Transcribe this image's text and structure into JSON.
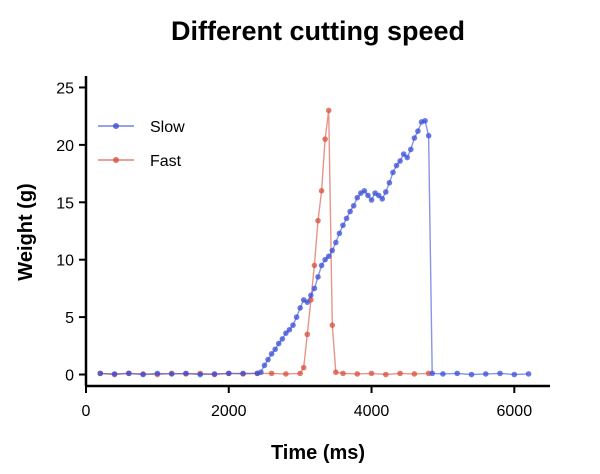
{
  "chart_data": {
    "type": "line",
    "title": "Different cutting speed",
    "xlabel": "Time (ms)",
    "ylabel": "Weight (g)",
    "xlim": [
      0,
      6500
    ],
    "ylim": [
      -1,
      26
    ],
    "xticks": [
      0,
      2000,
      4000,
      6000
    ],
    "xtick_labels": [
      "0",
      "2000",
      "4000",
      "6000"
    ],
    "yticks": [
      0,
      5,
      10,
      15,
      20,
      25
    ],
    "ytick_labels": [
      "0",
      "5",
      "10",
      "15",
      "20",
      "25"
    ],
    "grid": false,
    "legend_position": "top-left",
    "series": [
      {
        "name": "Slow",
        "color": "#3a4fd8",
        "x": [
          200,
          400,
          600,
          800,
          1000,
          1200,
          1400,
          1600,
          1800,
          2000,
          2200,
          2400,
          2450,
          2500,
          2550,
          2600,
          2650,
          2700,
          2750,
          2800,
          2850,
          2900,
          2950,
          3000,
          3050,
          3100,
          3150,
          3200,
          3250,
          3300,
          3350,
          3400,
          3450,
          3500,
          3550,
          3600,
          3650,
          3700,
          3750,
          3800,
          3850,
          3900,
          3950,
          4000,
          4050,
          4100,
          4150,
          4200,
          4250,
          4300,
          4350,
          4400,
          4450,
          4500,
          4550,
          4600,
          4650,
          4700,
          4750,
          4800,
          4850,
          5000,
          5200,
          5400,
          5600,
          5800,
          6000,
          6200
        ],
        "values": [
          0.1,
          0.05,
          0.1,
          0.0,
          0.1,
          0.05,
          0.1,
          0.0,
          0.05,
          0.1,
          0.1,
          0.1,
          0.2,
          0.8,
          1.3,
          1.8,
          2.2,
          2.7,
          3.1,
          3.6,
          3.9,
          4.3,
          5.0,
          5.8,
          6.5,
          6.3,
          6.9,
          7.5,
          8.5,
          9.5,
          10.0,
          10.3,
          10.8,
          11.5,
          12.3,
          13.0,
          13.6,
          14.2,
          14.7,
          15.4,
          15.8,
          16.0,
          15.6,
          15.2,
          15.8,
          15.6,
          15.3,
          15.9,
          16.7,
          17.6,
          18.2,
          18.6,
          19.2,
          18.9,
          19.6,
          20.6,
          21.2,
          22.0,
          22.1,
          20.8,
          0.1,
          0.05,
          0.1,
          0.0,
          0.05,
          0.1,
          0.0,
          0.05
        ]
      },
      {
        "name": "Fast",
        "color": "#d84f3a",
        "x": [
          200,
          400,
          600,
          800,
          1000,
          1200,
          1400,
          1600,
          1800,
          2000,
          2200,
          2400,
          2600,
          2800,
          3000,
          3050,
          3100,
          3150,
          3200,
          3250,
          3300,
          3350,
          3400,
          3450,
          3500,
          3600,
          3800,
          4000,
          4200,
          4400,
          4600,
          4800
        ],
        "values": [
          0.1,
          0.0,
          0.1,
          0.05,
          0.0,
          0.1,
          0.05,
          0.1,
          0.0,
          0.1,
          0.05,
          0.1,
          0.1,
          0.05,
          0.1,
          0.6,
          3.5,
          6.5,
          9.5,
          13.4,
          16.0,
          20.5,
          23.0,
          4.3,
          0.2,
          0.1,
          0.05,
          0.1,
          0.0,
          0.1,
          0.05,
          0.1
        ]
      }
    ]
  }
}
